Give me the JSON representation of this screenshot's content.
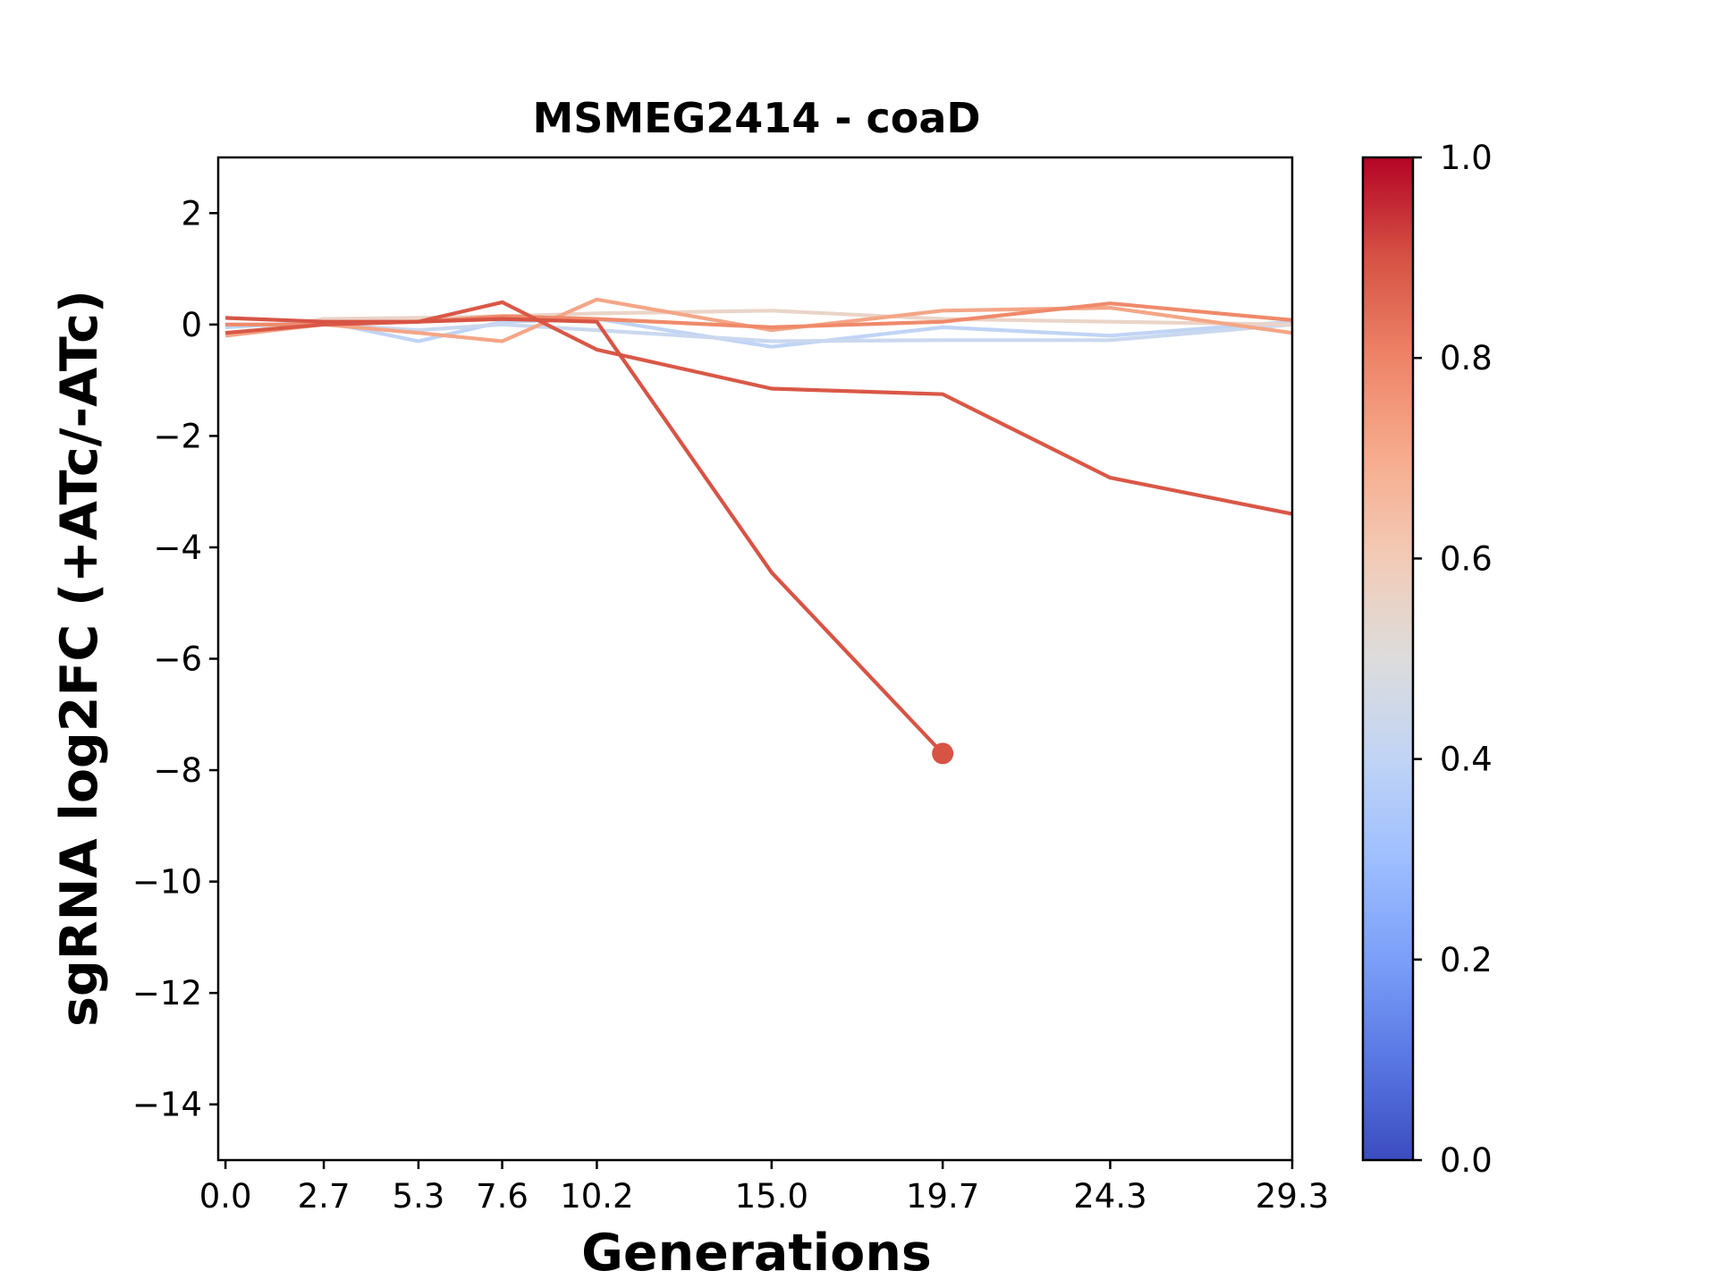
{
  "chart_data": {
    "type": "line",
    "title": "MSMEG2414 - coaD",
    "xlabel": "Generations",
    "ylabel": "sgRNA log2FC (+ATc/-ATc)",
    "x_tick_labels": [
      "0.0",
      "2.7",
      "5.3",
      "7.6",
      "10.2",
      "15.0",
      "19.7",
      "24.3",
      "29.3"
    ],
    "x": [
      0.0,
      2.7,
      5.3,
      7.6,
      10.2,
      15.0,
      19.7,
      24.3,
      29.3
    ],
    "xlim": [
      -0.2,
      29.3
    ],
    "ylim": [
      -15,
      3
    ],
    "y_ticks": [
      2,
      0,
      -2,
      -4,
      -6,
      -8,
      -10,
      -12,
      -14
    ],
    "y_tick_labels": [
      "2",
      "0",
      "−2",
      "−4",
      "−6",
      "−8",
      "−10",
      "−12",
      "−14"
    ],
    "colorbar": {
      "colormap": "coolwarm",
      "range": [
        0.0,
        1.0
      ],
      "tick_values": [
        0.0,
        0.2,
        0.4,
        0.6,
        0.8,
        1.0
      ],
      "tick_labels": [
        "0.0",
        "0.2",
        "0.4",
        "0.6",
        "0.8",
        "1.0"
      ]
    },
    "series": [
      {
        "color_value": 0.42,
        "color": "#c0d4f5",
        "values": [
          -0.05,
          0.05,
          -0.3,
          0.05,
          0.1,
          -0.4,
          -0.05,
          -0.2,
          0.05
        ]
      },
      {
        "color_value": 0.45,
        "color": "#cad8ef",
        "values": [
          0.0,
          0.0,
          -0.1,
          0.0,
          -0.1,
          -0.3,
          -0.28,
          -0.28,
          0.0
        ]
      },
      {
        "color_value": 0.58,
        "color": "#ead4c8",
        "values": [
          -0.2,
          0.1,
          0.12,
          0.15,
          0.2,
          0.25,
          0.1,
          0.05,
          0.0
        ]
      },
      {
        "color_value": 0.72,
        "color": "#f4a687",
        "values": [
          -0.2,
          0.0,
          -0.15,
          -0.3,
          0.45,
          -0.1,
          0.25,
          0.3,
          -0.15
        ]
      },
      {
        "color_value": 0.78,
        "color": "#ef8a6a",
        "values": [
          0.0,
          0.0,
          0.05,
          0.15,
          0.1,
          -0.05,
          0.05,
          0.38,
          0.08
        ]
      },
      {
        "color_value": 0.88,
        "color": "#d95847",
        "values": [
          -0.15,
          0.0,
          0.05,
          0.4,
          -0.45,
          -1.15,
          -1.25,
          -2.75,
          -3.4
        ]
      },
      {
        "color_value": 0.87,
        "color": "#d75445",
        "values": [
          0.12,
          0.05,
          0.05,
          0.1,
          0.05,
          -4.45,
          -7.7,
          null,
          null
        ],
        "end_marker": true
      }
    ]
  }
}
